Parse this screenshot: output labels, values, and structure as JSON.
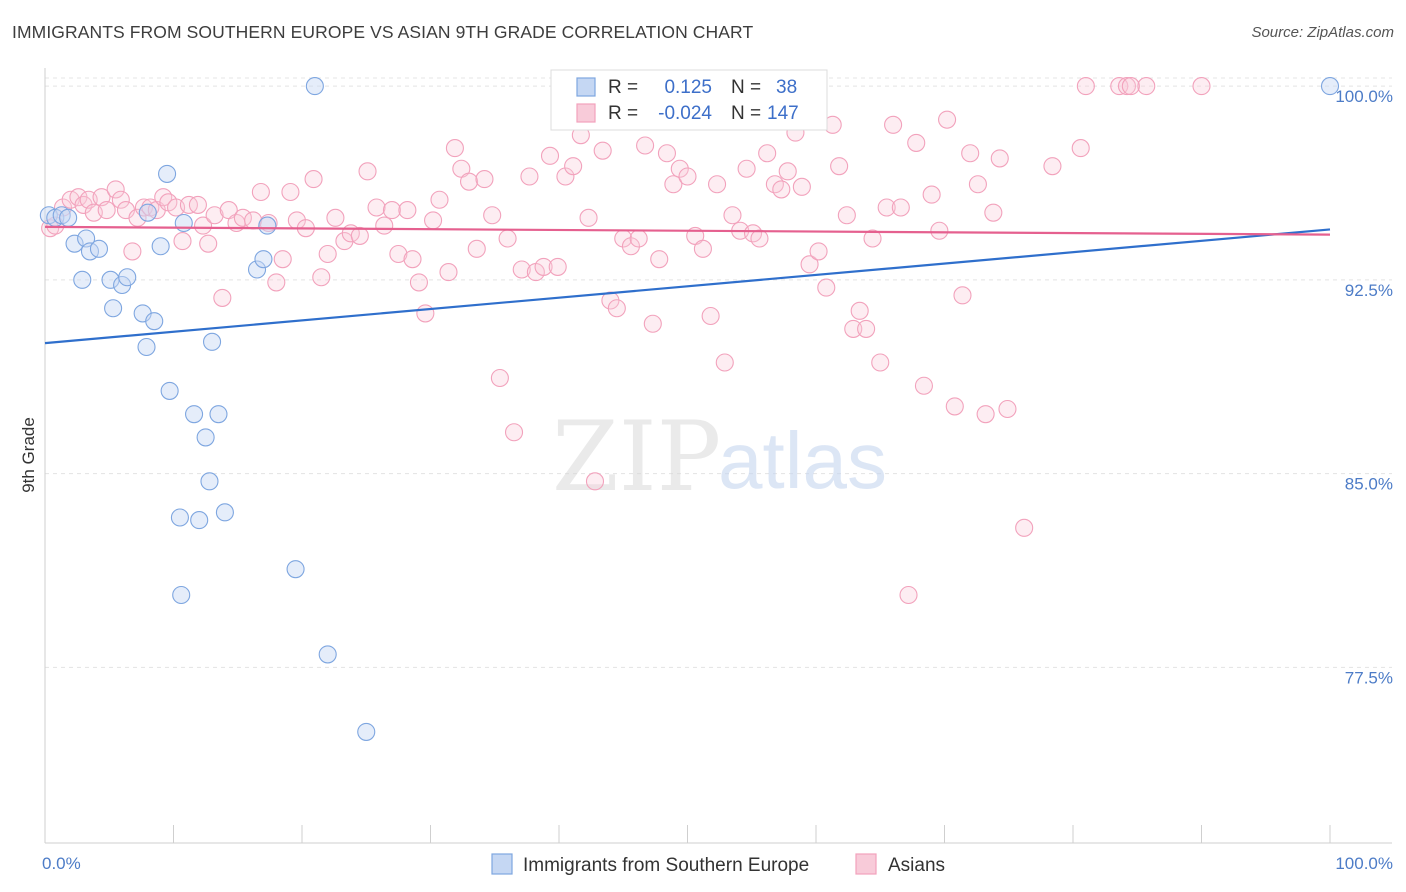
{
  "title": "IMMIGRANTS FROM SOUTHERN EUROPE VS ASIAN 9TH GRADE CORRELATION CHART",
  "source": "Source: ZipAtlas.com",
  "watermark": {
    "zip": "ZIP",
    "atlas": "atlas"
  },
  "legend": {
    "series1": {
      "r_label": "R =",
      "r_value": "0.125",
      "n_label": "N =",
      "n_value": "38"
    },
    "series2": {
      "r_label": "R =",
      "r_value": "-0.024",
      "n_label": "N =",
      "n_value": "147"
    }
  },
  "bottom_legend": [
    "Immigrants from Southern Europe",
    "Asians"
  ],
  "chart_data": {
    "type": "scatter",
    "xlabel": "",
    "ylabel": "9th Grade",
    "xlim": [
      0,
      100
    ],
    "ylim": [
      70.7,
      100.7
    ],
    "y_ticks": [
      {
        "value": 100.0,
        "label": "100.0%"
      },
      {
        "value": 92.5,
        "label": "92.5%"
      },
      {
        "value": 85.0,
        "label": "85.0%"
      },
      {
        "value": 77.5,
        "label": "77.5%"
      }
    ],
    "x_tick_labels": [
      {
        "value": 0,
        "label": "0.0%"
      },
      {
        "value": 100,
        "label": "100.0%"
      }
    ],
    "x_minor_ticks": [
      10,
      20,
      30,
      40,
      50,
      60,
      70,
      80,
      90,
      100
    ],
    "grid": true,
    "series": [
      {
        "name": "Immigrants from Southern Europe",
        "color": "#7ea6e0",
        "line_color": "#2f6fcc",
        "trend": [
          [
            0,
            90.05
          ],
          [
            100,
            94.45
          ]
        ],
        "points": [
          [
            0.3,
            95.0
          ],
          [
            0.8,
            94.9
          ],
          [
            1.3,
            95.0
          ],
          [
            1.8,
            94.9
          ],
          [
            2.3,
            93.9
          ],
          [
            3.2,
            94.1
          ],
          [
            3.5,
            93.6
          ],
          [
            4.2,
            93.7
          ],
          [
            2.9,
            92.5
          ],
          [
            5.1,
            92.5
          ],
          [
            6.0,
            92.3
          ],
          [
            6.4,
            92.6
          ],
          [
            5.3,
            91.4
          ],
          [
            7.6,
            91.2
          ],
          [
            8.5,
            90.9
          ],
          [
            7.9,
            89.9
          ],
          [
            9.0,
            93.8
          ],
          [
            9.5,
            96.6
          ],
          [
            10.8,
            94.7
          ],
          [
            9.7,
            88.2
          ],
          [
            11.6,
            87.3
          ],
          [
            13.5,
            87.3
          ],
          [
            12.5,
            86.4
          ],
          [
            12.8,
            84.7
          ],
          [
            10.5,
            83.3
          ],
          [
            12.0,
            83.2
          ],
          [
            14.0,
            83.5
          ],
          [
            13.0,
            90.1
          ],
          [
            16.5,
            92.9
          ],
          [
            17.0,
            93.3
          ],
          [
            17.3,
            94.6
          ],
          [
            21.0,
            100.0
          ],
          [
            19.5,
            81.3
          ],
          [
            10.6,
            80.3
          ],
          [
            22.0,
            78.0
          ],
          [
            25.0,
            75.0
          ],
          [
            100.0,
            100.0
          ],
          [
            8.0,
            95.1
          ]
        ]
      },
      {
        "name": "Asians",
        "color": "#f2a2bc",
        "line_color": "#e5608f",
        "trend": [
          [
            0,
            94.55
          ],
          [
            100,
            94.25
          ]
        ],
        "points": [
          [
            0.4,
            94.5
          ],
          [
            0.8,
            94.6
          ],
          [
            1.4,
            95.3
          ],
          [
            2.0,
            95.6
          ],
          [
            2.6,
            95.7
          ],
          [
            3.0,
            95.4
          ],
          [
            3.4,
            95.6
          ],
          [
            3.8,
            95.1
          ],
          [
            4.4,
            95.7
          ],
          [
            4.8,
            95.2
          ],
          [
            5.5,
            96.0
          ],
          [
            5.9,
            95.6
          ],
          [
            6.3,
            95.2
          ],
          [
            6.8,
            93.6
          ],
          [
            7.2,
            94.9
          ],
          [
            7.7,
            95.3
          ],
          [
            8.2,
            95.3
          ],
          [
            8.7,
            95.2
          ],
          [
            9.2,
            95.7
          ],
          [
            9.6,
            95.5
          ],
          [
            10.2,
            95.3
          ],
          [
            10.7,
            94.0
          ],
          [
            11.2,
            95.4
          ],
          [
            11.9,
            95.4
          ],
          [
            12.3,
            94.6
          ],
          [
            12.7,
            93.9
          ],
          [
            13.2,
            95.0
          ],
          [
            13.8,
            91.8
          ],
          [
            14.3,
            95.2
          ],
          [
            14.9,
            94.7
          ],
          [
            15.4,
            94.9
          ],
          [
            16.2,
            94.8
          ],
          [
            16.8,
            95.9
          ],
          [
            17.4,
            94.7
          ],
          [
            18.0,
            92.4
          ],
          [
            18.5,
            93.3
          ],
          [
            19.1,
            95.9
          ],
          [
            19.6,
            94.8
          ],
          [
            20.3,
            94.5
          ],
          [
            20.9,
            96.4
          ],
          [
            21.5,
            92.6
          ],
          [
            22.0,
            93.5
          ],
          [
            22.6,
            94.9
          ],
          [
            23.3,
            94.0
          ],
          [
            23.8,
            94.3
          ],
          [
            24.5,
            94.2
          ],
          [
            25.1,
            96.7
          ],
          [
            25.8,
            95.3
          ],
          [
            26.4,
            94.6
          ],
          [
            27.0,
            95.2
          ],
          [
            27.5,
            93.5
          ],
          [
            28.2,
            95.2
          ],
          [
            28.6,
            93.3
          ],
          [
            29.1,
            92.4
          ],
          [
            29.6,
            91.2
          ],
          [
            30.2,
            94.8
          ],
          [
            30.7,
            95.6
          ],
          [
            31.4,
            92.8
          ],
          [
            31.9,
            97.6
          ],
          [
            32.4,
            96.8
          ],
          [
            33.0,
            96.3
          ],
          [
            33.6,
            93.7
          ],
          [
            34.2,
            96.4
          ],
          [
            34.8,
            95.0
          ],
          [
            35.4,
            88.7
          ],
          [
            36.0,
            94.1
          ],
          [
            36.5,
            86.6
          ],
          [
            37.1,
            92.9
          ],
          [
            37.7,
            96.5
          ],
          [
            38.2,
            92.8
          ],
          [
            38.8,
            93.0
          ],
          [
            39.3,
            97.3
          ],
          [
            39.9,
            93.0
          ],
          [
            40.5,
            96.5
          ],
          [
            41.1,
            96.9
          ],
          [
            41.7,
            98.1
          ],
          [
            42.3,
            94.9
          ],
          [
            42.8,
            84.7
          ],
          [
            43.4,
            97.5
          ],
          [
            44.0,
            91.7
          ],
          [
            44.5,
            91.4
          ],
          [
            45.0,
            94.1
          ],
          [
            45.6,
            93.8
          ],
          [
            46.2,
            94.1
          ],
          [
            46.7,
            97.7
          ],
          [
            47.3,
            90.8
          ],
          [
            47.8,
            93.3
          ],
          [
            48.4,
            97.4
          ],
          [
            48.9,
            96.2
          ],
          [
            49.4,
            96.8
          ],
          [
            50.0,
            96.5
          ],
          [
            50.6,
            94.2
          ],
          [
            51.2,
            93.7
          ],
          [
            51.8,
            91.1
          ],
          [
            52.3,
            96.2
          ],
          [
            52.9,
            89.3
          ],
          [
            53.5,
            95.0
          ],
          [
            54.1,
            94.4
          ],
          [
            54.6,
            96.8
          ],
          [
            55.1,
            94.3
          ],
          [
            55.6,
            94.1
          ],
          [
            56.2,
            97.4
          ],
          [
            56.8,
            96.2
          ],
          [
            57.3,
            96.0
          ],
          [
            57.8,
            96.7
          ],
          [
            58.4,
            98.2
          ],
          [
            58.9,
            96.1
          ],
          [
            59.5,
            93.1
          ],
          [
            60.2,
            93.6
          ],
          [
            60.8,
            92.2
          ],
          [
            61.3,
            98.5
          ],
          [
            61.8,
            96.9
          ],
          [
            62.4,
            95.0
          ],
          [
            62.9,
            90.6
          ],
          [
            63.4,
            91.3
          ],
          [
            63.9,
            90.6
          ],
          [
            64.4,
            94.1
          ],
          [
            65.0,
            89.3
          ],
          [
            65.5,
            95.3
          ],
          [
            66.0,
            98.5
          ],
          [
            66.6,
            95.3
          ],
          [
            67.2,
            80.3
          ],
          [
            67.8,
            97.8
          ],
          [
            68.4,
            88.4
          ],
          [
            69.0,
            95.8
          ],
          [
            69.6,
            94.4
          ],
          [
            70.2,
            98.7
          ],
          [
            70.8,
            87.6
          ],
          [
            71.4,
            91.9
          ],
          [
            72.0,
            97.4
          ],
          [
            72.6,
            96.2
          ],
          [
            73.2,
            87.3
          ],
          [
            73.8,
            95.1
          ],
          [
            74.3,
            97.2
          ],
          [
            74.9,
            87.5
          ],
          [
            76.2,
            82.9
          ],
          [
            78.4,
            96.9
          ],
          [
            81.0,
            100.0
          ],
          [
            83.6,
            100.0
          ],
          [
            84.2,
            100.0
          ],
          [
            80.6,
            97.6
          ],
          [
            85.7,
            100.0
          ],
          [
            90.0,
            100.0
          ],
          [
            84.5,
            100.0
          ]
        ]
      }
    ]
  }
}
